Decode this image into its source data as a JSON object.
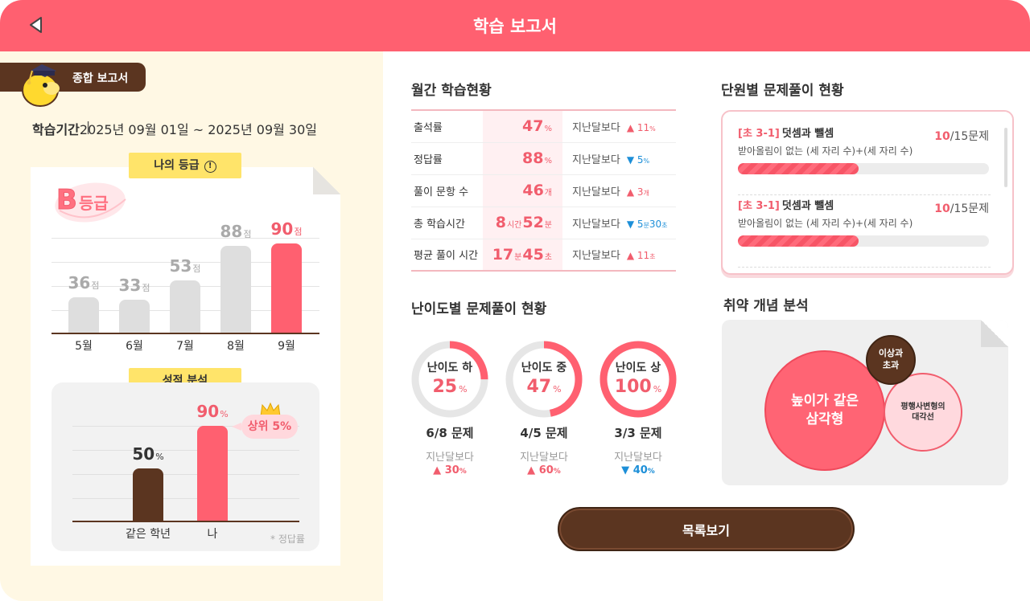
{
  "header": {
    "title": "학습 보고서"
  },
  "left": {
    "tag_label": "종합 보고서",
    "period_label": "학습기간",
    "period_value": "2025년 09월 01일 ~ 2025년 09월 30일",
    "grade_section_label": "나의 등급",
    "grade_letter": "B",
    "grade_suffix": "등급",
    "monthly_chart_unit": "점",
    "analysis_section_label": "성적 분석",
    "analysis_badge": "상위 5%",
    "analysis_footnote": "* 정답률"
  },
  "chart_data": [
    {
      "type": "bar",
      "categories": [
        "5월",
        "6월",
        "7월",
        "8월",
        "9월"
      ],
      "values": [
        36,
        33,
        53,
        88,
        90
      ],
      "value_unit": "점",
      "highlight_index": 4,
      "colors": {
        "normal": "#dedede",
        "highlight": "#ff6070",
        "normal_label": "#aaaaaa",
        "highlight_label": "#f15d6d"
      },
      "ylim": [
        0,
        100
      ]
    },
    {
      "type": "bar",
      "categories": [
        "같은 학년",
        "나"
      ],
      "values": [
        50,
        90
      ],
      "value_unit": "%",
      "colors": [
        "#5b3520",
        "#ff6070"
      ],
      "ylim": [
        0,
        100
      ]
    }
  ],
  "monthly": {
    "title": "월간 학습현황",
    "compare_label": "지난달보다",
    "rows": [
      {
        "label": "출석률",
        "value_html": "47|%",
        "delta_dir": "up",
        "delta": "11",
        "delta_unit": "%"
      },
      {
        "label": "정답률",
        "value_html": "88|%",
        "delta_dir": "down",
        "delta": "5",
        "delta_unit": "%"
      },
      {
        "label": "풀이 문항 수",
        "value_html": "46|개",
        "delta_dir": "up",
        "delta": "3",
        "delta_unit": "개"
      },
      {
        "label": "총 학습시간",
        "value_parts": [
          "8",
          "시간",
          "52",
          "분"
        ],
        "delta_dir": "down",
        "delta_parts": [
          "5",
          "분",
          "30",
          "초"
        ]
      },
      {
        "label": "평균 풀이 시간",
        "value_parts": [
          "17",
          "분",
          "45",
          "초"
        ],
        "delta_dir": "up",
        "delta": "11",
        "delta_unit": "초"
      }
    ]
  },
  "difficulty": {
    "title": "난이도별 문제풀이 현황",
    "compare_label": "지난달보다",
    "items": [
      {
        "level": "난이도 하",
        "percent": 25,
        "count": "6/8 문제",
        "delta_dir": "up",
        "delta": "30",
        "delta_unit": "%"
      },
      {
        "level": "난이도 중",
        "percent": 47,
        "count": "4/5 문제",
        "delta_dir": "up",
        "delta": "60",
        "delta_unit": "%"
      },
      {
        "level": "난이도 상",
        "percent": 100,
        "count": "3/3 문제",
        "delta_dir": "down",
        "delta": "40",
        "delta_unit": "%"
      }
    ]
  },
  "units": {
    "title": "단원별 문제풀이 현황",
    "items": [
      {
        "code": "[초 3-1]",
        "name": "덧셈과 뺄셈",
        "sub": "받아올림이 없는 (세 자리 수)+(세 자리 수)",
        "solved": "10",
        "total": "/15문제",
        "progress": 0.48
      },
      {
        "code": "[초 3-1]",
        "name": "덧셈과 뺄셈",
        "sub": "받아올림이 없는 (세 자리 수)+(세 자리 수)",
        "solved": "10",
        "total": "/15문제",
        "progress": 0.48
      }
    ]
  },
  "weak": {
    "title": "취약 개념 분석",
    "bubbles": [
      {
        "label": "높이가 같은\n삼각형",
        "rank": 1
      },
      {
        "label": "이상과\n초과",
        "rank": 3
      },
      {
        "label": "평행사변형의\n대각선",
        "rank": 2
      }
    ]
  },
  "list_button": "목록보기",
  "icons": {
    "back": "back-triangle-icon",
    "info": "info-circle-icon",
    "crown": "crown-icon",
    "mascot": "mascot-graduate-icon"
  }
}
